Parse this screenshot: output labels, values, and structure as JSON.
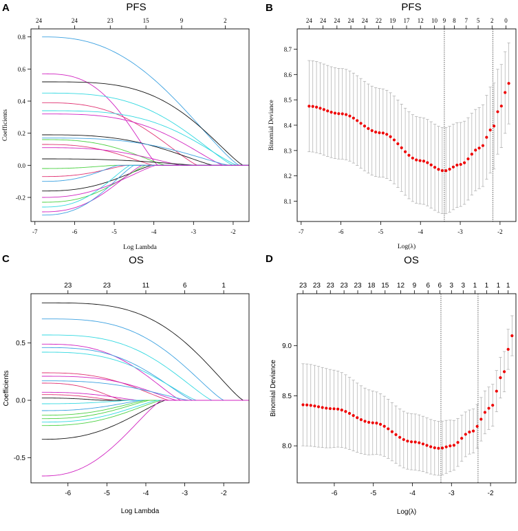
{
  "chart_data": [
    {
      "panel": "A",
      "type": "line",
      "title": "PFS",
      "xlabel": "Log Lambda",
      "ylabel": "Coefficients",
      "xlim": [
        -7.1,
        -1.6
      ],
      "ylim": [
        -0.35,
        0.85
      ],
      "xticks": [
        -7,
        -6,
        -5,
        -4,
        -3,
        -2
      ],
      "yticks": [
        -0.2,
        0.0,
        0.2,
        0.4,
        0.6,
        0.8
      ],
      "top_axis": {
        "positions": [
          -6.9,
          -6.0,
          -5.1,
          -4.2,
          -3.3,
          -2.2
        ],
        "labels": [
          "24",
          "24",
          "23",
          "15",
          "9",
          "2"
        ]
      },
      "series": [
        {
          "start": 0.8,
          "zero_at": -1.85,
          "color": "#3aa0e0",
          "hold": 0.25
        },
        {
          "start": 0.57,
          "zero_at": -3.9,
          "color": "#d020c0",
          "hold": 0.45
        },
        {
          "start": 0.52,
          "zero_at": -1.75,
          "color": "#111111",
          "hold": 0.8
        },
        {
          "start": 0.45,
          "zero_at": -2.0,
          "color": "#30d8e0",
          "hold": 0.55
        },
        {
          "start": 0.39,
          "zero_at": -2.9,
          "color": "#e03070",
          "hold": 0.4
        },
        {
          "start": 0.34,
          "zero_at": -1.9,
          "color": "#30d8e0",
          "hold": 0.7
        },
        {
          "start": 0.32,
          "zero_at": -2.25,
          "color": "#d020c0",
          "hold": 0.6
        },
        {
          "start": 0.19,
          "zero_at": -2.5,
          "color": "#111111",
          "hold": 0.5
        },
        {
          "start": 0.17,
          "zero_at": -2.1,
          "color": "#3aa0e0",
          "hold": 0.55
        },
        {
          "start": 0.16,
          "zero_at": -3.7,
          "color": "#4ad040",
          "hold": 0.4
        },
        {
          "start": 0.13,
          "zero_at": -4.0,
          "color": "#e03070",
          "hold": 0.35
        },
        {
          "start": 0.11,
          "zero_at": -3.3,
          "color": "#d020c0",
          "hold": 0.45
        },
        {
          "start": 0.04,
          "zero_at": -2.9,
          "color": "#111111",
          "hold": 0.4
        },
        {
          "start": -0.02,
          "zero_at": -5.0,
          "color": "#4ad040",
          "hold": 0.3
        },
        {
          "start": -0.07,
          "zero_at": -4.7,
          "color": "#e03070",
          "hold": 0.3
        },
        {
          "start": -0.1,
          "zero_at": -4.9,
          "color": "#3aa0e0",
          "hold": 0.3
        },
        {
          "start": -0.16,
          "zero_at": -4.05,
          "color": "#111111",
          "hold": 0.3
        },
        {
          "start": -0.23,
          "zero_at": -4.2,
          "color": "#4ad040",
          "hold": 0.3
        },
        {
          "start": -0.26,
          "zero_at": -4.6,
          "color": "#30d8e0",
          "hold": 0.3
        },
        {
          "start": -0.29,
          "zero_at": -4.3,
          "color": "#d020c0",
          "hold": 0.25
        },
        {
          "start": -0.31,
          "zero_at": -4.5,
          "color": "#3aa0e0",
          "hold": 0.25
        },
        {
          "start": -0.2,
          "zero_at": -3.95,
          "color": "#d020c0",
          "hold": 0.2
        }
      ]
    },
    {
      "panel": "B",
      "type": "cv_errorbar",
      "title": "PFS",
      "xlabel": "Log(λ)",
      "ylabel": "Binomial Deviance",
      "xlim": [
        -7.1,
        -1.6
      ],
      "ylim": [
        8.02,
        8.78
      ],
      "xticks": [
        -7,
        -6,
        -5,
        -4,
        -3,
        -2
      ],
      "yticks": [
        8.1,
        8.2,
        8.3,
        8.4,
        8.5,
        8.6,
        8.7
      ],
      "top_axis": {
        "positions": [
          -6.8,
          -6.45,
          -6.1,
          -5.75,
          -5.4,
          -5.05,
          -4.7,
          -4.35,
          -4.0,
          -3.65,
          -3.4,
          -3.15,
          -2.85,
          -2.55,
          -2.2,
          -1.85
        ],
        "labels": [
          "24",
          "24",
          "24",
          "24",
          "24",
          "22",
          "19",
          "17",
          "12",
          "10",
          "9",
          "8",
          "7",
          "5",
          "2",
          "0"
        ]
      },
      "points": {
        "x_range": [
          -6.8,
          -1.78
        ],
        "n": 55,
        "y_curve": [
          {
            "x": -6.8,
            "y": 8.475
          },
          {
            "x": -6.0,
            "y": 8.445
          },
          {
            "x": -5.0,
            "y": 8.37
          },
          {
            "x": -4.0,
            "y": 8.26
          },
          {
            "x": -3.4,
            "y": 8.22
          },
          {
            "x": -3.0,
            "y": 8.245
          },
          {
            "x": -2.5,
            "y": 8.31
          },
          {
            "x": -2.2,
            "y": 8.385
          },
          {
            "x": -2.0,
            "y": 8.47
          },
          {
            "x": -1.78,
            "y": 8.565
          }
        ],
        "se_curve": [
          {
            "x": -6.8,
            "se": 0.18
          },
          {
            "x": -3.4,
            "se": 0.17
          },
          {
            "x": -2.5,
            "se": 0.16
          },
          {
            "x": -2.2,
            "se": 0.17
          },
          {
            "x": -1.78,
            "se": 0.16
          }
        ]
      },
      "vlines": [
        -3.4,
        -2.18
      ]
    },
    {
      "panel": "C",
      "type": "line",
      "title": "OS",
      "xlabel": "Log Lambda",
      "ylabel": "Coefficients",
      "xlim": [
        -6.95,
        -1.35
      ],
      "ylim": [
        -0.72,
        0.93
      ],
      "xticks": [
        -6,
        -5,
        -4,
        -3,
        -2
      ],
      "yticks": [
        -0.5,
        0.0,
        0.5
      ],
      "top_axis": {
        "positions": [
          -6.0,
          -5.0,
          -4.0,
          -3.0,
          -2.0
        ],
        "labels": [
          "23",
          "23",
          "11",
          "6",
          "1"
        ]
      },
      "series": [
        {
          "start": 0.85,
          "zero_at": -1.5,
          "color": "#111111",
          "hold": 0.75
        },
        {
          "start": 0.71,
          "zero_at": -2.0,
          "color": "#3aa0e0",
          "hold": 0.6
        },
        {
          "start": 0.57,
          "zero_at": -2.3,
          "color": "#30d8e0",
          "hold": 0.55
        },
        {
          "start": 0.49,
          "zero_at": -3.1,
          "color": "#d020c0",
          "hold": 0.45
        },
        {
          "start": 0.46,
          "zero_at": -2.8,
          "color": "#3aa0e0",
          "hold": 0.5
        },
        {
          "start": 0.42,
          "zero_at": -2.7,
          "color": "#30d8e0",
          "hold": 0.45
        },
        {
          "start": 0.24,
          "zero_at": -3.4,
          "color": "#e03070",
          "hold": 0.4
        },
        {
          "start": 0.21,
          "zero_at": -3.2,
          "color": "#d020c0",
          "hold": 0.55
        },
        {
          "start": 0.17,
          "zero_at": -2.9,
          "color": "#3aa0e0",
          "hold": 0.4
        },
        {
          "start": 0.15,
          "zero_at": -4.6,
          "color": "#e03070",
          "hold": 0.35
        },
        {
          "start": 0.07,
          "zero_at": -4.2,
          "color": "#d020c0",
          "hold": 0.3
        },
        {
          "start": 0.05,
          "zero_at": -4.8,
          "color": "#e03070",
          "hold": 0.3
        },
        {
          "start": 0.02,
          "zero_at": -5.1,
          "color": "#111111",
          "hold": 0.3
        },
        {
          "start": -0.03,
          "zero_at": -4.4,
          "color": "#30d8e0",
          "hold": 0.3
        },
        {
          "start": -0.09,
          "zero_at": -4.1,
          "color": "#3aa0e0",
          "hold": 0.3
        },
        {
          "start": -0.13,
          "zero_at": -4.0,
          "color": "#4ad040",
          "hold": 0.3
        },
        {
          "start": -0.16,
          "zero_at": -3.9,
          "color": "#4ad040",
          "hold": 0.3
        },
        {
          "start": -0.19,
          "zero_at": -3.7,
          "color": "#30d8e0",
          "hold": 0.3
        },
        {
          "start": -0.22,
          "zero_at": -3.6,
          "color": "#4ad040",
          "hold": 0.3
        },
        {
          "start": -0.34,
          "zero_at": -3.5,
          "color": "#111111",
          "hold": 0.25
        },
        {
          "start": -0.66,
          "zero_at": -3.6,
          "color": "#d020c0",
          "hold": 0.2
        }
      ]
    },
    {
      "panel": "D",
      "type": "cv_errorbar",
      "title": "OS",
      "xlabel": "Log(λ)",
      "ylabel": "Binomial Deviance",
      "xlim": [
        -6.95,
        -1.35
      ],
      "ylim": [
        7.63,
        9.52
      ],
      "xticks": [
        -6,
        -5,
        -4,
        -3,
        -2
      ],
      "yticks": [
        8.0,
        8.5,
        9.0
      ],
      "top_axis": {
        "positions": [
          -6.8,
          -6.45,
          -6.1,
          -5.75,
          -5.4,
          -5.05,
          -4.7,
          -4.3,
          -3.95,
          -3.6,
          -3.3,
          -3.0,
          -2.7,
          -2.4,
          -2.1,
          -1.8,
          -1.55
        ],
        "labels": [
          "23",
          "23",
          "23",
          "23",
          "23",
          "18",
          "15",
          "12",
          "9",
          "6",
          "6",
          "3",
          "3",
          "1",
          "1",
          "1",
          "1"
        ]
      },
      "points": {
        "x_range": [
          -6.8,
          -1.45
        ],
        "n": 55,
        "y_curve": [
          {
            "x": -6.8,
            "y": 8.41
          },
          {
            "x": -6.0,
            "y": 8.37
          },
          {
            "x": -5.0,
            "y": 8.23
          },
          {
            "x": -4.0,
            "y": 8.04
          },
          {
            "x": -3.3,
            "y": 7.975
          },
          {
            "x": -3.0,
            "y": 8.0
          },
          {
            "x": -2.5,
            "y": 8.14
          },
          {
            "x": -2.0,
            "y": 8.38
          },
          {
            "x": -1.7,
            "y": 8.7
          },
          {
            "x": -1.45,
            "y": 9.1
          }
        ],
        "se_curve": [
          {
            "x": -6.8,
            "se": 0.41
          },
          {
            "x": -4.0,
            "se": 0.28
          },
          {
            "x": -3.3,
            "se": 0.27
          },
          {
            "x": -2.5,
            "se": 0.22
          },
          {
            "x": -1.45,
            "se": 0.2
          }
        ]
      },
      "vlines": [
        -3.27,
        -2.32
      ]
    }
  ]
}
